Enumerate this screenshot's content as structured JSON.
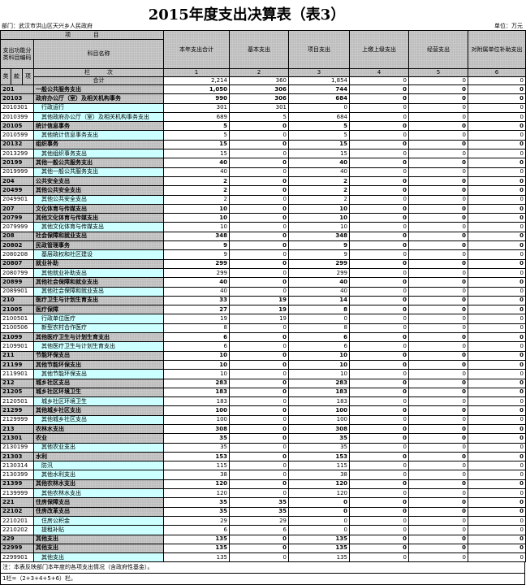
{
  "title": "2015年度支出决算表（表3）",
  "department": "部门：武汉市洪山区天兴乡人民政府",
  "unit": "单位：万元",
  "header": {
    "item": "项　　　　目",
    "code_label": "支出功能分类科目编码",
    "name_label": "科目名称",
    "lei": "类",
    "kuan": "款",
    "xiang": "项",
    "lanci": "栏　　　次",
    "total_label": "合计",
    "columns": [
      "本年支出合计",
      "基本支出",
      "项目支出",
      "上缴上级支出",
      "经营支出",
      "对附属单位补助支出"
    ],
    "col_nums": [
      "1",
      "2",
      "3",
      "4",
      "5",
      "6"
    ]
  },
  "totals": [
    "2,214",
    "360",
    "1,854",
    "0",
    "0",
    "0"
  ],
  "rows": [
    [
      "201",
      "一般公共服务支出",
      1,
      "1,050",
      "306",
      "744",
      "0",
      "0",
      "0"
    ],
    [
      "20103",
      "政府办公厅（室）及相关机构事务",
      1,
      "990",
      "306",
      "684",
      "0",
      "0",
      "0"
    ],
    [
      "2010301",
      "行政运行",
      0,
      "301",
      "301",
      "0",
      "0",
      "0",
      "0"
    ],
    [
      "2010399",
      "其他政府办公厅（室）及相关机构事务支出",
      0,
      "689",
      "5",
      "684",
      "0",
      "0",
      "0"
    ],
    [
      "20105",
      "统计信息事务",
      1,
      "5",
      "0",
      "5",
      "0",
      "0",
      "0"
    ],
    [
      "2010599",
      "其他统计信息事务支出",
      0,
      "5",
      "0",
      "5",
      "0",
      "0",
      "0"
    ],
    [
      "20132",
      "组织事务",
      1,
      "15",
      "0",
      "15",
      "0",
      "0",
      "0"
    ],
    [
      "2013299",
      "其他组织事务支出",
      0,
      "15",
      "0",
      "15",
      "0",
      "0",
      "0"
    ],
    [
      "20199",
      "其他一般公共服务支出",
      1,
      "40",
      "0",
      "40",
      "0",
      "0",
      "0"
    ],
    [
      "2019999",
      "其他一般公共服务支出",
      0,
      "40",
      "0",
      "40",
      "0",
      "0",
      "0"
    ],
    [
      "204",
      "公共安全支出",
      1,
      "2",
      "0",
      "2",
      "0",
      "0",
      "0"
    ],
    [
      "20499",
      "其他公共安全支出",
      1,
      "2",
      "0",
      "2",
      "0",
      "0",
      "0"
    ],
    [
      "2049901",
      "其他公共安全支出",
      0,
      "2",
      "0",
      "2",
      "0",
      "0",
      "0"
    ],
    [
      "207",
      "文化体育与传媒支出",
      1,
      "10",
      "0",
      "10",
      "0",
      "0",
      "0"
    ],
    [
      "20799",
      "其他文化体育与传媒支出",
      1,
      "10",
      "0",
      "10",
      "0",
      "0",
      "0"
    ],
    [
      "2079999",
      "其他文化体育与传媒支出",
      0,
      "10",
      "0",
      "10",
      "0",
      "0",
      "0"
    ],
    [
      "208",
      "社会保障和就业支出",
      1,
      "348",
      "0",
      "348",
      "0",
      "0",
      "0"
    ],
    [
      "20802",
      "民政管理事务",
      1,
      "9",
      "0",
      "9",
      "0",
      "0",
      "0"
    ],
    [
      "2080208",
      "基层政权和社区建设",
      0,
      "9",
      "0",
      "9",
      "0",
      "0",
      "0"
    ],
    [
      "20807",
      "就业补助",
      1,
      "299",
      "0",
      "299",
      "0",
      "0",
      "0"
    ],
    [
      "2080799",
      "其他就业补助支出",
      0,
      "299",
      "0",
      "299",
      "0",
      "0",
      "0"
    ],
    [
      "20899",
      "其他社会保障和就业支出",
      1,
      "40",
      "0",
      "40",
      "0",
      "0",
      "0"
    ],
    [
      "2089901",
      "其他社会保障和就业支出",
      0,
      "40",
      "0",
      "40",
      "0",
      "0",
      "0"
    ],
    [
      "210",
      "医疗卫生与计划生育支出",
      1,
      "33",
      "19",
      "14",
      "0",
      "0",
      "0"
    ],
    [
      "21005",
      "医疗保障",
      1,
      "27",
      "19",
      "8",
      "0",
      "0",
      "0"
    ],
    [
      "2100501",
      "行政单位医疗",
      0,
      "19",
      "19",
      "0",
      "0",
      "0",
      "0"
    ],
    [
      "2100506",
      "新型农村合作医疗",
      0,
      "8",
      "0",
      "8",
      "0",
      "0",
      "0"
    ],
    [
      "21099",
      "其他医疗卫生与计划生育支出",
      1,
      "6",
      "0",
      "6",
      "0",
      "0",
      "0"
    ],
    [
      "2109901",
      "其他医疗卫生与计划生育支出",
      0,
      "6",
      "0",
      "6",
      "0",
      "0",
      "0"
    ],
    [
      "211",
      "节能环保支出",
      1,
      "10",
      "0",
      "10",
      "0",
      "0",
      "0"
    ],
    [
      "21199",
      "其他节能环保支出",
      1,
      "10",
      "0",
      "10",
      "0",
      "0",
      "0"
    ],
    [
      "2119901",
      "其他节能环保支出",
      0,
      "10",
      "0",
      "10",
      "0",
      "0",
      "0"
    ],
    [
      "212",
      "城乡社区支出",
      1,
      "283",
      "0",
      "283",
      "0",
      "0",
      "0"
    ],
    [
      "21205",
      "城乡社区环境卫生",
      1,
      "183",
      "0",
      "183",
      "0",
      "0",
      "0"
    ],
    [
      "2120501",
      "城乡社区环境卫生",
      0,
      "183",
      "0",
      "183",
      "0",
      "0",
      "0"
    ],
    [
      "21299",
      "其他城乡社区支出",
      1,
      "100",
      "0",
      "100",
      "0",
      "0",
      "0"
    ],
    [
      "2129999",
      "其他城乡社区支出",
      0,
      "100",
      "0",
      "100",
      "0",
      "0",
      "0"
    ],
    [
      "213",
      "农林水支出",
      1,
      "308",
      "0",
      "308",
      "0",
      "0",
      "0"
    ],
    [
      "21301",
      "农业",
      1,
      "35",
      "0",
      "35",
      "0",
      "0",
      "0"
    ],
    [
      "2130199",
      "其他农业支出",
      0,
      "35",
      "0",
      "35",
      "0",
      "0",
      "0"
    ],
    [
      "21303",
      "水利",
      1,
      "153",
      "0",
      "153",
      "0",
      "0",
      "0"
    ],
    [
      "2130314",
      "防汛",
      0,
      "115",
      "0",
      "115",
      "0",
      "0",
      "0"
    ],
    [
      "2130399",
      "其他水利支出",
      0,
      "38",
      "0",
      "38",
      "0",
      "0",
      "0"
    ],
    [
      "21399",
      "其他农林水支出",
      1,
      "120",
      "0",
      "120",
      "0",
      "0",
      "0"
    ],
    [
      "2139999",
      "其他农林水支出",
      0,
      "120",
      "0",
      "120",
      "0",
      "0",
      "0"
    ],
    [
      "221",
      "住房保障支出",
      1,
      "35",
      "35",
      "0",
      "0",
      "0",
      "0"
    ],
    [
      "22102",
      "住房改革支出",
      1,
      "35",
      "35",
      "0",
      "0",
      "0",
      "0"
    ],
    [
      "2210201",
      "住房公积金",
      0,
      "29",
      "29",
      "0",
      "0",
      "0",
      "0"
    ],
    [
      "2210202",
      "提租补贴",
      0,
      "6",
      "6",
      "0",
      "0",
      "0",
      "0"
    ],
    [
      "229",
      "其他支出",
      1,
      "135",
      "0",
      "135",
      "0",
      "0",
      "0"
    ],
    [
      "22999",
      "其他支出",
      1,
      "135",
      "0",
      "135",
      "0",
      "0",
      "0"
    ],
    [
      "2299901",
      "其他支出",
      0,
      "135",
      "0",
      "135",
      "0",
      "0",
      "0"
    ]
  ],
  "notes": [
    "注：本表反映部门本年度的各项支出情况（含政府性基金）。",
    "1栏=（2+3+4+5+6）栏。"
  ]
}
